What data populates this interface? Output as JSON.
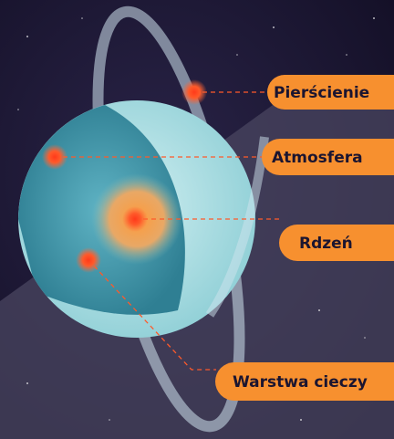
{
  "labels": [
    {
      "text": "Pierścienie"
    },
    {
      "text": "Atmosfera"
    },
    {
      "text": "Rdzeń"
    },
    {
      "text": "Warstwa cieczy"
    }
  ]
}
